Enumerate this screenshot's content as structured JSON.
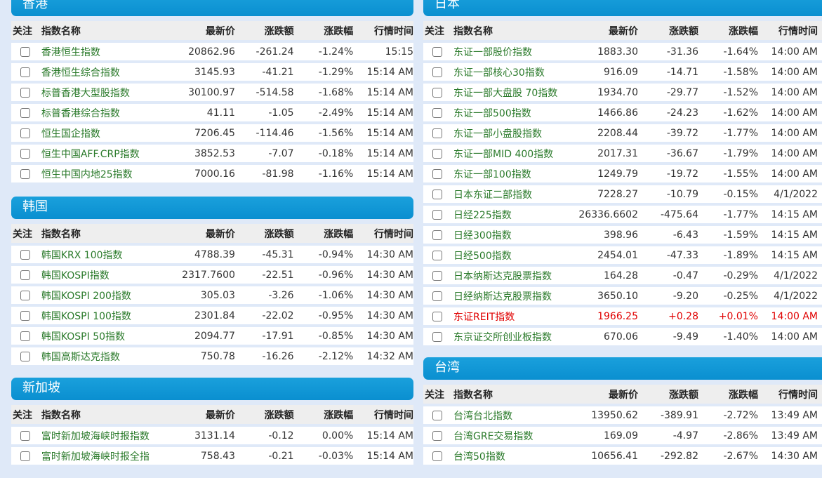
{
  "columns": {
    "follow": "关注",
    "name": "指数名称",
    "price": "最新价",
    "change": "涨跌额",
    "pct": "涨跌幅",
    "time": "行情时间"
  },
  "hongkong": {
    "title": "香港",
    "rows": [
      {
        "name": "香港恒生指数",
        "price": "20862.96",
        "change": "-261.24",
        "pct": "-1.24%",
        "time": "15:15"
      },
      {
        "name": "香港恒生综合指数",
        "price": "3145.93",
        "change": "-41.21",
        "pct": "-1.29%",
        "time": "15:14 AM"
      },
      {
        "name": "标普香港大型股指数",
        "price": "30100.97",
        "change": "-514.58",
        "pct": "-1.68%",
        "time": "15:14 AM"
      },
      {
        "name": "标普香港综合指数",
        "price": "41.11",
        "change": "-1.05",
        "pct": "-2.49%",
        "time": "15:14 AM"
      },
      {
        "name": "恒生国企指数",
        "price": "7206.45",
        "change": "-114.46",
        "pct": "-1.56%",
        "time": "15:14 AM"
      },
      {
        "name": "恒生中国AFF.CRP指数",
        "price": "3852.53",
        "change": "-7.07",
        "pct": "-0.18%",
        "time": "15:14 AM"
      },
      {
        "name": "恒生中国内地25指数",
        "price": "7000.16",
        "change": "-81.98",
        "pct": "-1.16%",
        "time": "15:14 AM"
      }
    ]
  },
  "korea": {
    "title": "韩国",
    "rows": [
      {
        "name": "韩国KRX 100指数",
        "price": "4788.39",
        "change": "-45.31",
        "pct": "-0.94%",
        "time": "14:30 AM"
      },
      {
        "name": "韩国KOSPI指数",
        "price": "2317.7600",
        "change": "-22.51",
        "pct": "-0.96%",
        "time": "14:30 AM"
      },
      {
        "name": "韩国KOSPI 200指数",
        "price": "305.03",
        "change": "-3.26",
        "pct": "-1.06%",
        "time": "14:30 AM"
      },
      {
        "name": "韩国KOSPI 100指数",
        "price": "2301.84",
        "change": "-22.02",
        "pct": "-0.95%",
        "time": "14:30 AM"
      },
      {
        "name": "韩国KOSPI 50指数",
        "price": "2094.77",
        "change": "-17.91",
        "pct": "-0.85%",
        "time": "14:30 AM"
      },
      {
        "name": "韩国高斯达克指数",
        "price": "750.78",
        "change": "-16.26",
        "pct": "-2.12%",
        "time": "14:32 AM"
      }
    ]
  },
  "singapore": {
    "title": "新加坡",
    "rows": [
      {
        "name": "富时新加坡海峡时报指数",
        "price": "3131.14",
        "change": "-0.12",
        "pct": "0.00%",
        "time": "15:14 AM"
      },
      {
        "name": "富时新加坡海峡时报全指",
        "price": "758.43",
        "change": "-0.21",
        "pct": "-0.03%",
        "time": "15:14 AM"
      }
    ]
  },
  "japan": {
    "title": "日本",
    "rows": [
      {
        "name": "东证一部股价指数",
        "price": "1883.30",
        "change": "-31.36",
        "pct": "-1.64%",
        "time": "14:00 AM"
      },
      {
        "name": "东证一部核心30指数",
        "price": "916.09",
        "change": "-14.71",
        "pct": "-1.58%",
        "time": "14:00 AM"
      },
      {
        "name": "东证一部大盘股 70指数",
        "price": "1934.70",
        "change": "-29.77",
        "pct": "-1.52%",
        "time": "14:00 AM"
      },
      {
        "name": "东证一部500指数",
        "price": "1466.86",
        "change": "-24.23",
        "pct": "-1.62%",
        "time": "14:00 AM"
      },
      {
        "name": "东证一部小盘股指数",
        "price": "2208.44",
        "change": "-39.72",
        "pct": "-1.77%",
        "time": "14:00 AM"
      },
      {
        "name": "东证一部MID 400指数",
        "price": "2017.31",
        "change": "-36.67",
        "pct": "-1.79%",
        "time": "14:00 AM"
      },
      {
        "name": "东证一部100指数",
        "price": "1249.79",
        "change": "-19.72",
        "pct": "-1.55%",
        "time": "14:00 AM"
      },
      {
        "name": "日本东证二部指数",
        "price": "7228.27",
        "change": "-10.79",
        "pct": "-0.15%",
        "time": "4/1/2022"
      },
      {
        "name": "日经225指数",
        "price": "26336.6602",
        "change": "-475.64",
        "pct": "-1.77%",
        "time": "14:15 AM"
      },
      {
        "name": "日经300指数",
        "price": "398.96",
        "change": "-6.43",
        "pct": "-1.59%",
        "time": "14:15 AM"
      },
      {
        "name": "日经500指数",
        "price": "2454.01",
        "change": "-47.33",
        "pct": "-1.89%",
        "time": "14:15 AM"
      },
      {
        "name": "日本纳斯达克股票指数",
        "price": "164.28",
        "change": "-0.47",
        "pct": "-0.29%",
        "time": "4/1/2022"
      },
      {
        "name": "日经纳斯达克股票指数",
        "price": "3650.10",
        "change": "-9.20",
        "pct": "-0.25%",
        "time": "4/1/2022"
      },
      {
        "name": "东证REIT指数",
        "price": "1966.25",
        "change": "+0.28",
        "pct": "+0.01%",
        "time": "14:00 AM",
        "up": true
      },
      {
        "name": "东京证交所创业板指数",
        "price": "670.06",
        "change": "-9.49",
        "pct": "-1.40%",
        "time": "14:00 AM"
      }
    ]
  },
  "taiwan": {
    "title": "台湾",
    "rows": [
      {
        "name": "台湾台北指数",
        "price": "13950.62",
        "change": "-389.91",
        "pct": "-2.72%",
        "time": "13:49 AM"
      },
      {
        "name": "台湾GRE交易指数",
        "price": "169.09",
        "change": "-4.97",
        "pct": "-2.86%",
        "time": "13:49 AM"
      },
      {
        "name": "台湾50指数",
        "price": "10656.41",
        "change": "-292.82",
        "pct": "-2.67%",
        "time": "14:30 AM"
      }
    ]
  },
  "colors": {
    "header": "#0a8fd0",
    "down": "#2a7a2a",
    "up": "#e00000",
    "background": "#dfe9f8"
  }
}
